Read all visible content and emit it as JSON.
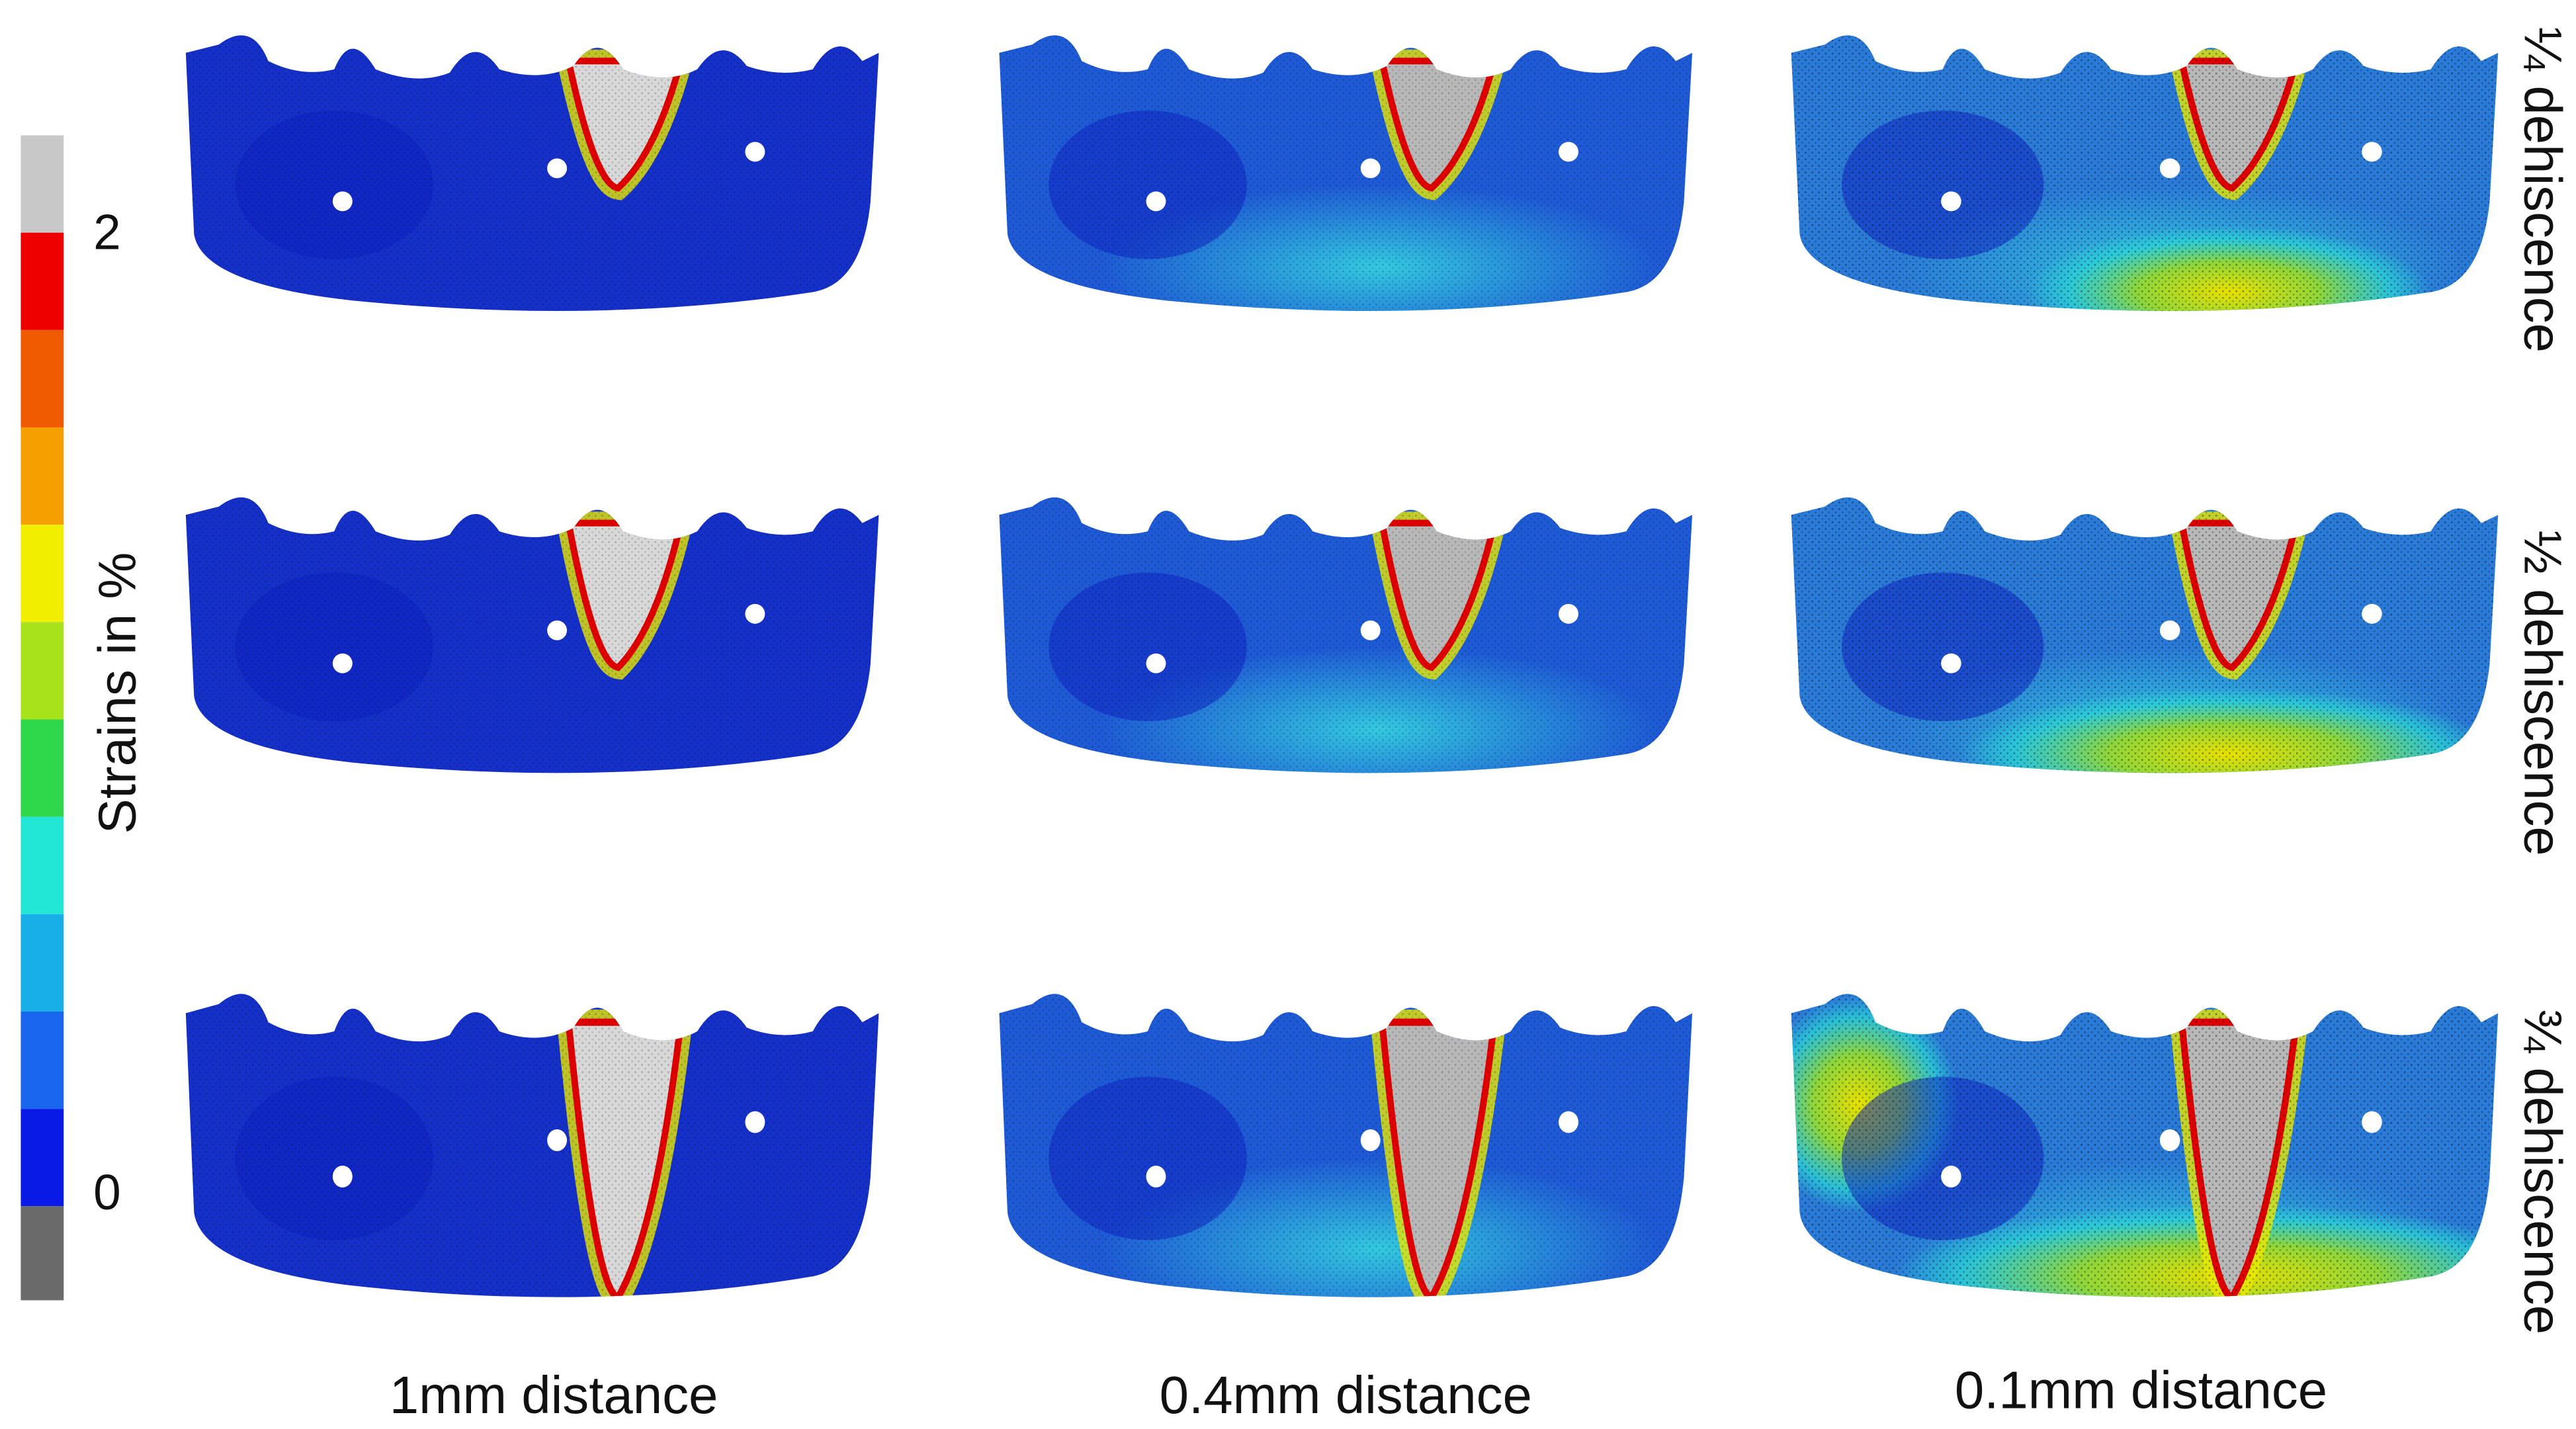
{
  "colorbar": {
    "title": "Strains in %",
    "labels": [
      "2",
      "0"
    ]
  },
  "columns": [
    "1mm distance",
    "0.4mm distance",
    "0.1mm distance"
  ],
  "rows": [
    "¼ dehiscence",
    "½ dehiscence",
    "¾ dehiscence"
  ]
}
